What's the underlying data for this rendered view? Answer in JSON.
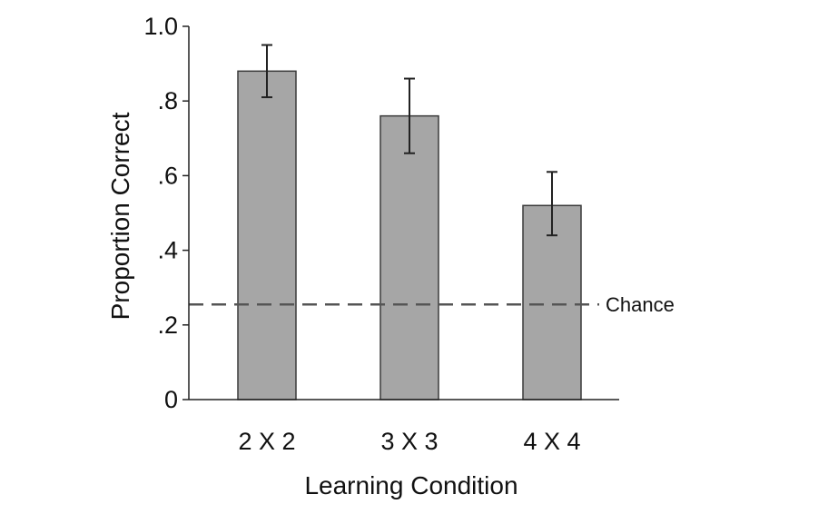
{
  "chart_data": {
    "type": "bar",
    "title": "",
    "xlabel": "Learning Condition",
    "ylabel": "Proportion Correct",
    "categories": [
      "2 X 2",
      "3 X 3",
      "4 X 4"
    ],
    "values": [
      0.88,
      0.76,
      0.52
    ],
    "error_upper": [
      0.95,
      0.86,
      0.61
    ],
    "error_lower": [
      0.81,
      0.66,
      0.44
    ],
    "ylim": [
      0,
      1.0
    ],
    "yticks": [
      0,
      0.2,
      0.4,
      0.6,
      0.8,
      1.0
    ],
    "ytick_labels": [
      "0",
      ".2",
      ".4",
      ".6",
      ".8",
      "1.0"
    ],
    "reference_line": {
      "value": 0.255,
      "label": "Chance",
      "style": "dashed"
    },
    "grid": false,
    "legend": "none",
    "colors": {
      "bar_fill": "#a6a6a6",
      "bar_stroke": "#3a3a3a",
      "axis": "#222222",
      "reference_line": "#555555",
      "error_bar": "#222222"
    }
  }
}
